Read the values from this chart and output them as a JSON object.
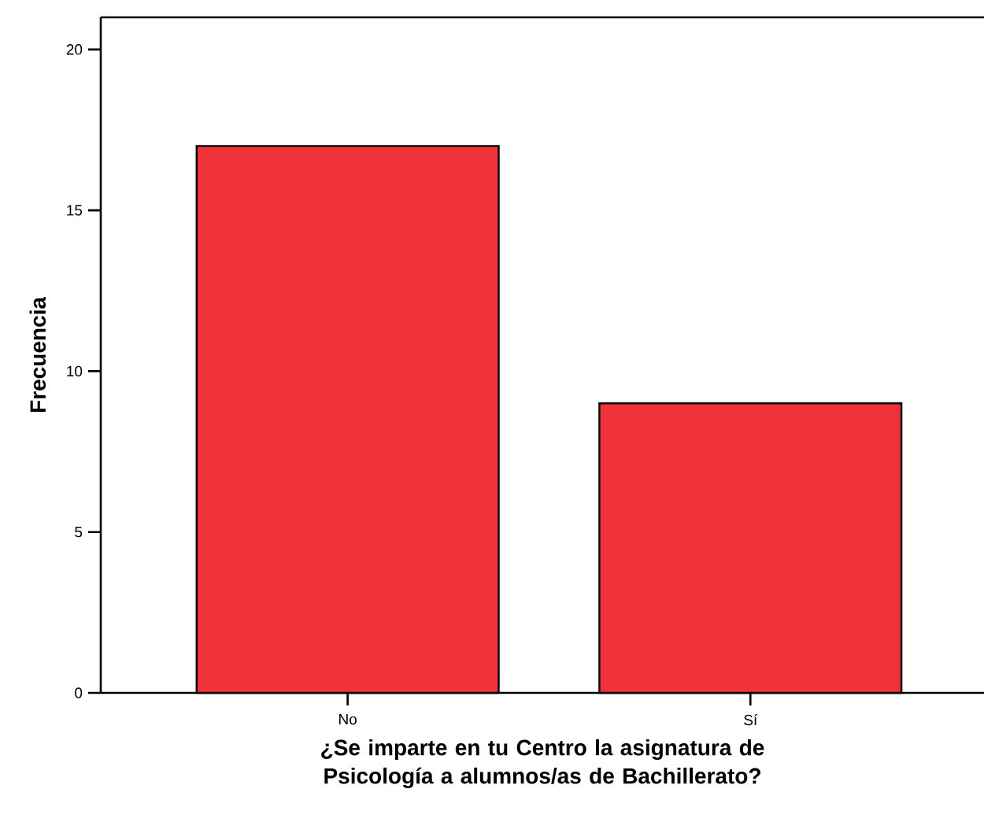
{
  "chart_data": {
    "type": "bar",
    "categories": [
      "No",
      "Sí"
    ],
    "values": [
      17,
      9
    ],
    "color": "#f0323a",
    "xlabel": "¿Se imparte en tu Centro la asignatura de Psicología a alumnos/as de Bachillerato?",
    "ylabel": "Frecuencia",
    "ylim": [
      0,
      21
    ],
    "yticks": [
      0,
      5,
      10,
      15,
      20
    ]
  }
}
